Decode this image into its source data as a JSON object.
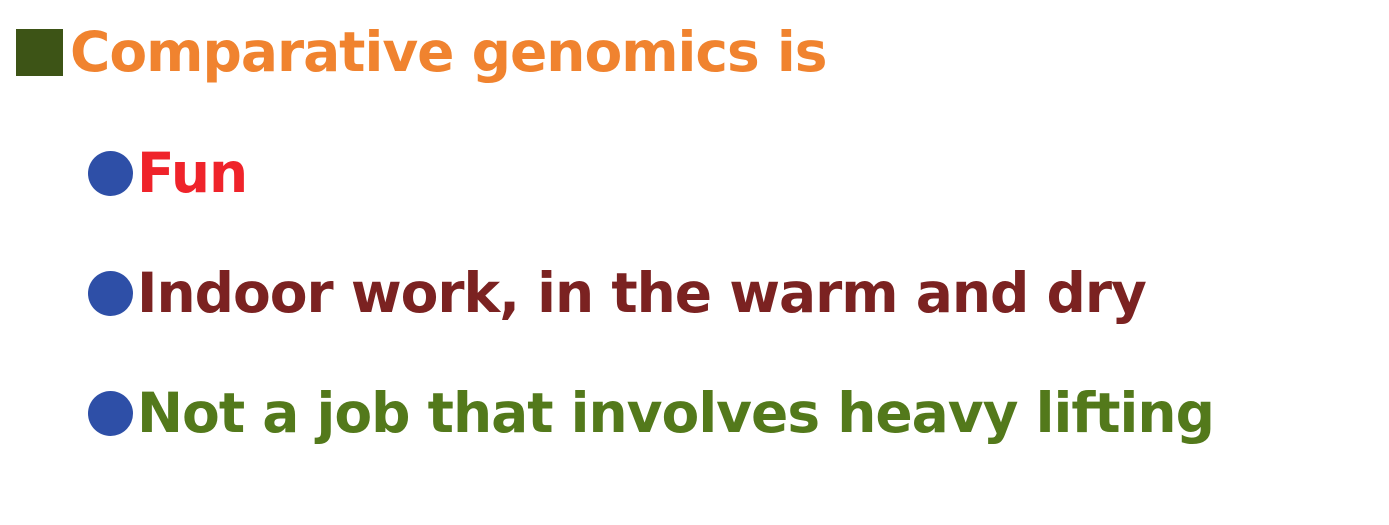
{
  "slide": {
    "heading": {
      "text": "Comparative genomics is",
      "icon": "square-bullet-icon",
      "bullet_color": "#3d5416",
      "color": "#f0832f"
    },
    "bullets": [
      {
        "text": "Fun",
        "icon": "circle-bullet-icon",
        "bullet_color": "#2e4fa7",
        "color": "#ef232a"
      },
      {
        "text": "Indoor work, in the warm and dry",
        "icon": "circle-bullet-icon",
        "bullet_color": "#2e4fa7",
        "color": "#7b2221"
      },
      {
        "text": "Not a job that involves heavy lifting",
        "icon": "circle-bullet-icon",
        "bullet_color": "#2e4fa7",
        "color": "#53791b"
      }
    ]
  }
}
